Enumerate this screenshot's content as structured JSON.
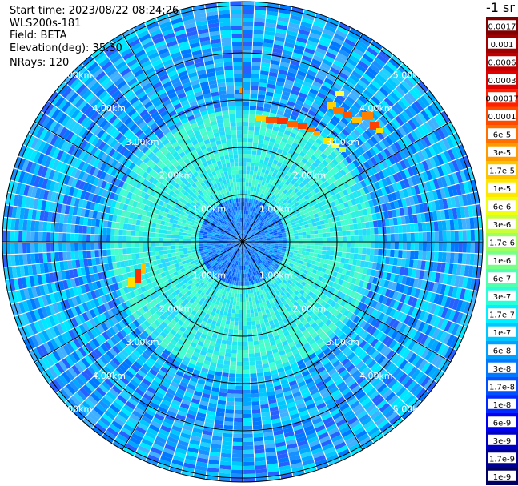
{
  "info": {
    "start_time": "Start time: 2023/08/22 08:24:26",
    "device": "WLS200s-181",
    "field": "Field: BETA",
    "elevation": "Elevation(deg): 35.30",
    "nrays": "NRays: 120"
  },
  "colorbar": {
    "title": "-1 sr",
    "labels": [
      "0.0017",
      "0.001",
      "0.0006",
      "0.0003",
      "0.00017",
      "0.0001",
      "6e-5",
      "3e-5",
      "1.7e-5",
      "1e-5",
      "6e-6",
      "3e-6",
      "1.7e-6",
      "1e-6",
      "6e-7",
      "3e-7",
      "1.7e-7",
      "1e-7",
      "6e-8",
      "3e-8",
      "1.7e-8",
      "1e-8",
      "6e-9",
      "3e-9",
      "1.7e-9",
      "1e-9"
    ],
    "colors": [
      "#7f0000",
      "#a00000",
      "#c00000",
      "#e00000",
      "#ff2000",
      "#ff4a00",
      "#ff7000",
      "#ff9a00",
      "#ffc400",
      "#ffe800",
      "#f0ff10",
      "#c8ff38",
      "#a0ff60",
      "#78ff88",
      "#50ffb0",
      "#28ffd8",
      "#00f0ff",
      "#00c8ff",
      "#00a0ff",
      "#0078ff",
      "#0050ff",
      "#0028ff",
      "#0000f0",
      "#0000c0",
      "#000090",
      "#000060"
    ]
  },
  "chart_data": {
    "type": "heatmap",
    "projection": "polar",
    "n_rays": 120,
    "range_rings_km": [
      1,
      2,
      3,
      4,
      5
    ],
    "range_label": "km",
    "ring_labels": [
      "1.00km",
      "2.00km",
      "3.00km",
      "4.00km",
      "5.00km"
    ]
  }
}
